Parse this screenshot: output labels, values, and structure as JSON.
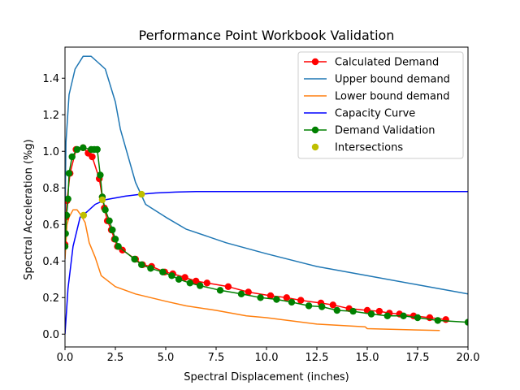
{
  "chart_data": {
    "type": "line",
    "title": "Performance Point Workbook Validation",
    "xlabel": "Spectral Displacement (inches)",
    "ylabel": "Spectral Acceleration (%g)",
    "xlim": [
      0,
      20
    ],
    "ylim": [
      -0.07,
      1.57
    ],
    "xticks": [
      0,
      2.5,
      5,
      7.5,
      10,
      12.5,
      15,
      17.5,
      20
    ],
    "xtick_labels": [
      "0.0",
      "2.5",
      "5.0",
      "7.5",
      "10.0",
      "12.5",
      "15.0",
      "17.5",
      "20.0"
    ],
    "yticks": [
      0,
      0.2,
      0.4,
      0.6,
      0.8,
      1.0,
      1.2,
      1.4
    ],
    "ytick_labels": [
      "0.0",
      "0.2",
      "0.4",
      "0.6",
      "0.8",
      "1.0",
      "1.2",
      "1.4"
    ],
    "grid": false,
    "legend_position": "upper right",
    "series": [
      {
        "name": "Calculated Demand",
        "color": "#ff0000",
        "style": "line-marker",
        "x": [
          0.0,
          0.05,
          0.1,
          0.25,
          0.55,
          0.9,
          1.15,
          1.35,
          1.7,
          1.85,
          1.95,
          2.1,
          2.3,
          2.45,
          2.6,
          2.85,
          3.5,
          3.85,
          4.3,
          4.95,
          5.35,
          5.95,
          6.5,
          7.05,
          8.1,
          9.1,
          10.2,
          11.0,
          11.7,
          12.7,
          13.3,
          14.1,
          15.0,
          15.6,
          16.1,
          16.6,
          17.3,
          18.1,
          18.9
        ],
        "y": [
          0.49,
          0.64,
          0.73,
          0.88,
          1.01,
          1.02,
          0.99,
          0.97,
          0.85,
          0.75,
          0.69,
          0.62,
          0.57,
          0.52,
          0.48,
          0.46,
          0.41,
          0.38,
          0.37,
          0.34,
          0.33,
          0.31,
          0.29,
          0.28,
          0.26,
          0.23,
          0.21,
          0.2,
          0.185,
          0.17,
          0.16,
          0.14,
          0.13,
          0.125,
          0.115,
          0.11,
          0.1,
          0.09,
          0.08
        ]
      },
      {
        "name": "Upper bound demand",
        "color": "#1f77b4",
        "style": "line",
        "x": [
          0.0,
          0.05,
          0.2,
          0.5,
          0.9,
          1.3,
          1.6,
          2.0,
          2.5,
          2.75,
          3.5,
          4.0,
          5.0,
          6.0,
          8.0,
          10.0,
          12.5,
          15.0,
          17.5,
          20.0
        ],
        "y": [
          0.62,
          1.05,
          1.31,
          1.45,
          1.52,
          1.52,
          1.49,
          1.45,
          1.27,
          1.12,
          0.83,
          0.71,
          0.64,
          0.575,
          0.5,
          0.44,
          0.37,
          0.32,
          0.27,
          0.22
        ]
      },
      {
        "name": "Lower bound demand",
        "color": "#ff7f0e",
        "style": "line",
        "x": [
          0.0,
          0.1,
          0.2,
          0.4,
          0.6,
          0.8,
          1.0,
          1.2,
          1.5,
          1.8,
          2.5,
          3.5,
          5.0,
          6.0,
          7.5,
          9.0,
          10.0,
          12.5,
          14.9,
          15.0,
          18.6
        ],
        "y": [
          0.41,
          0.6,
          0.64,
          0.68,
          0.68,
          0.65,
          0.61,
          0.5,
          0.42,
          0.32,
          0.26,
          0.22,
          0.18,
          0.155,
          0.13,
          0.1,
          0.09,
          0.055,
          0.04,
          0.03,
          0.02
        ]
      },
      {
        "name": "Capacity Curve",
        "color": "#0000ff",
        "style": "line",
        "x": [
          0.0,
          0.15,
          0.4,
          0.75,
          1.1,
          1.5,
          2.0,
          2.5,
          3.0,
          3.75,
          4.5,
          5.5,
          6.5,
          8.0,
          10.0,
          15.0,
          20.0
        ],
        "y": [
          0.0,
          0.25,
          0.48,
          0.64,
          0.67,
          0.71,
          0.735,
          0.745,
          0.755,
          0.765,
          0.772,
          0.777,
          0.78,
          0.78,
          0.78,
          0.78,
          0.78
        ]
      },
      {
        "name": "Demand Validation",
        "color": "#008000",
        "style": "line-marker",
        "x": [
          0.0,
          0.03,
          0.08,
          0.15,
          0.2,
          0.35,
          0.6,
          0.9,
          1.3,
          1.45,
          1.6,
          1.75,
          1.85,
          2.0,
          2.2,
          2.35,
          2.5,
          2.65,
          3.45,
          3.8,
          4.25,
          4.85,
          5.3,
          5.65,
          6.2,
          6.7,
          7.7,
          8.75,
          9.7,
          10.5,
          11.25,
          12.1,
          12.75,
          13.5,
          14.3,
          15.2,
          16.0,
          16.8,
          17.5,
          18.5,
          20.0
        ],
        "y": [
          0.48,
          0.55,
          0.65,
          0.74,
          0.88,
          0.97,
          1.01,
          1.02,
          1.01,
          1.01,
          1.01,
          0.87,
          0.75,
          0.68,
          0.62,
          0.57,
          0.52,
          0.48,
          0.41,
          0.38,
          0.36,
          0.34,
          0.32,
          0.3,
          0.28,
          0.265,
          0.24,
          0.22,
          0.2,
          0.19,
          0.175,
          0.155,
          0.15,
          0.13,
          0.125,
          0.11,
          0.1,
          0.1,
          0.09,
          0.075,
          0.065
        ]
      },
      {
        "name": "Intersections",
        "color": "#bfbf00",
        "style": "marker",
        "x": [
          0.92,
          1.85,
          3.8
        ],
        "y": [
          0.65,
          0.735,
          0.765
        ]
      }
    ]
  }
}
